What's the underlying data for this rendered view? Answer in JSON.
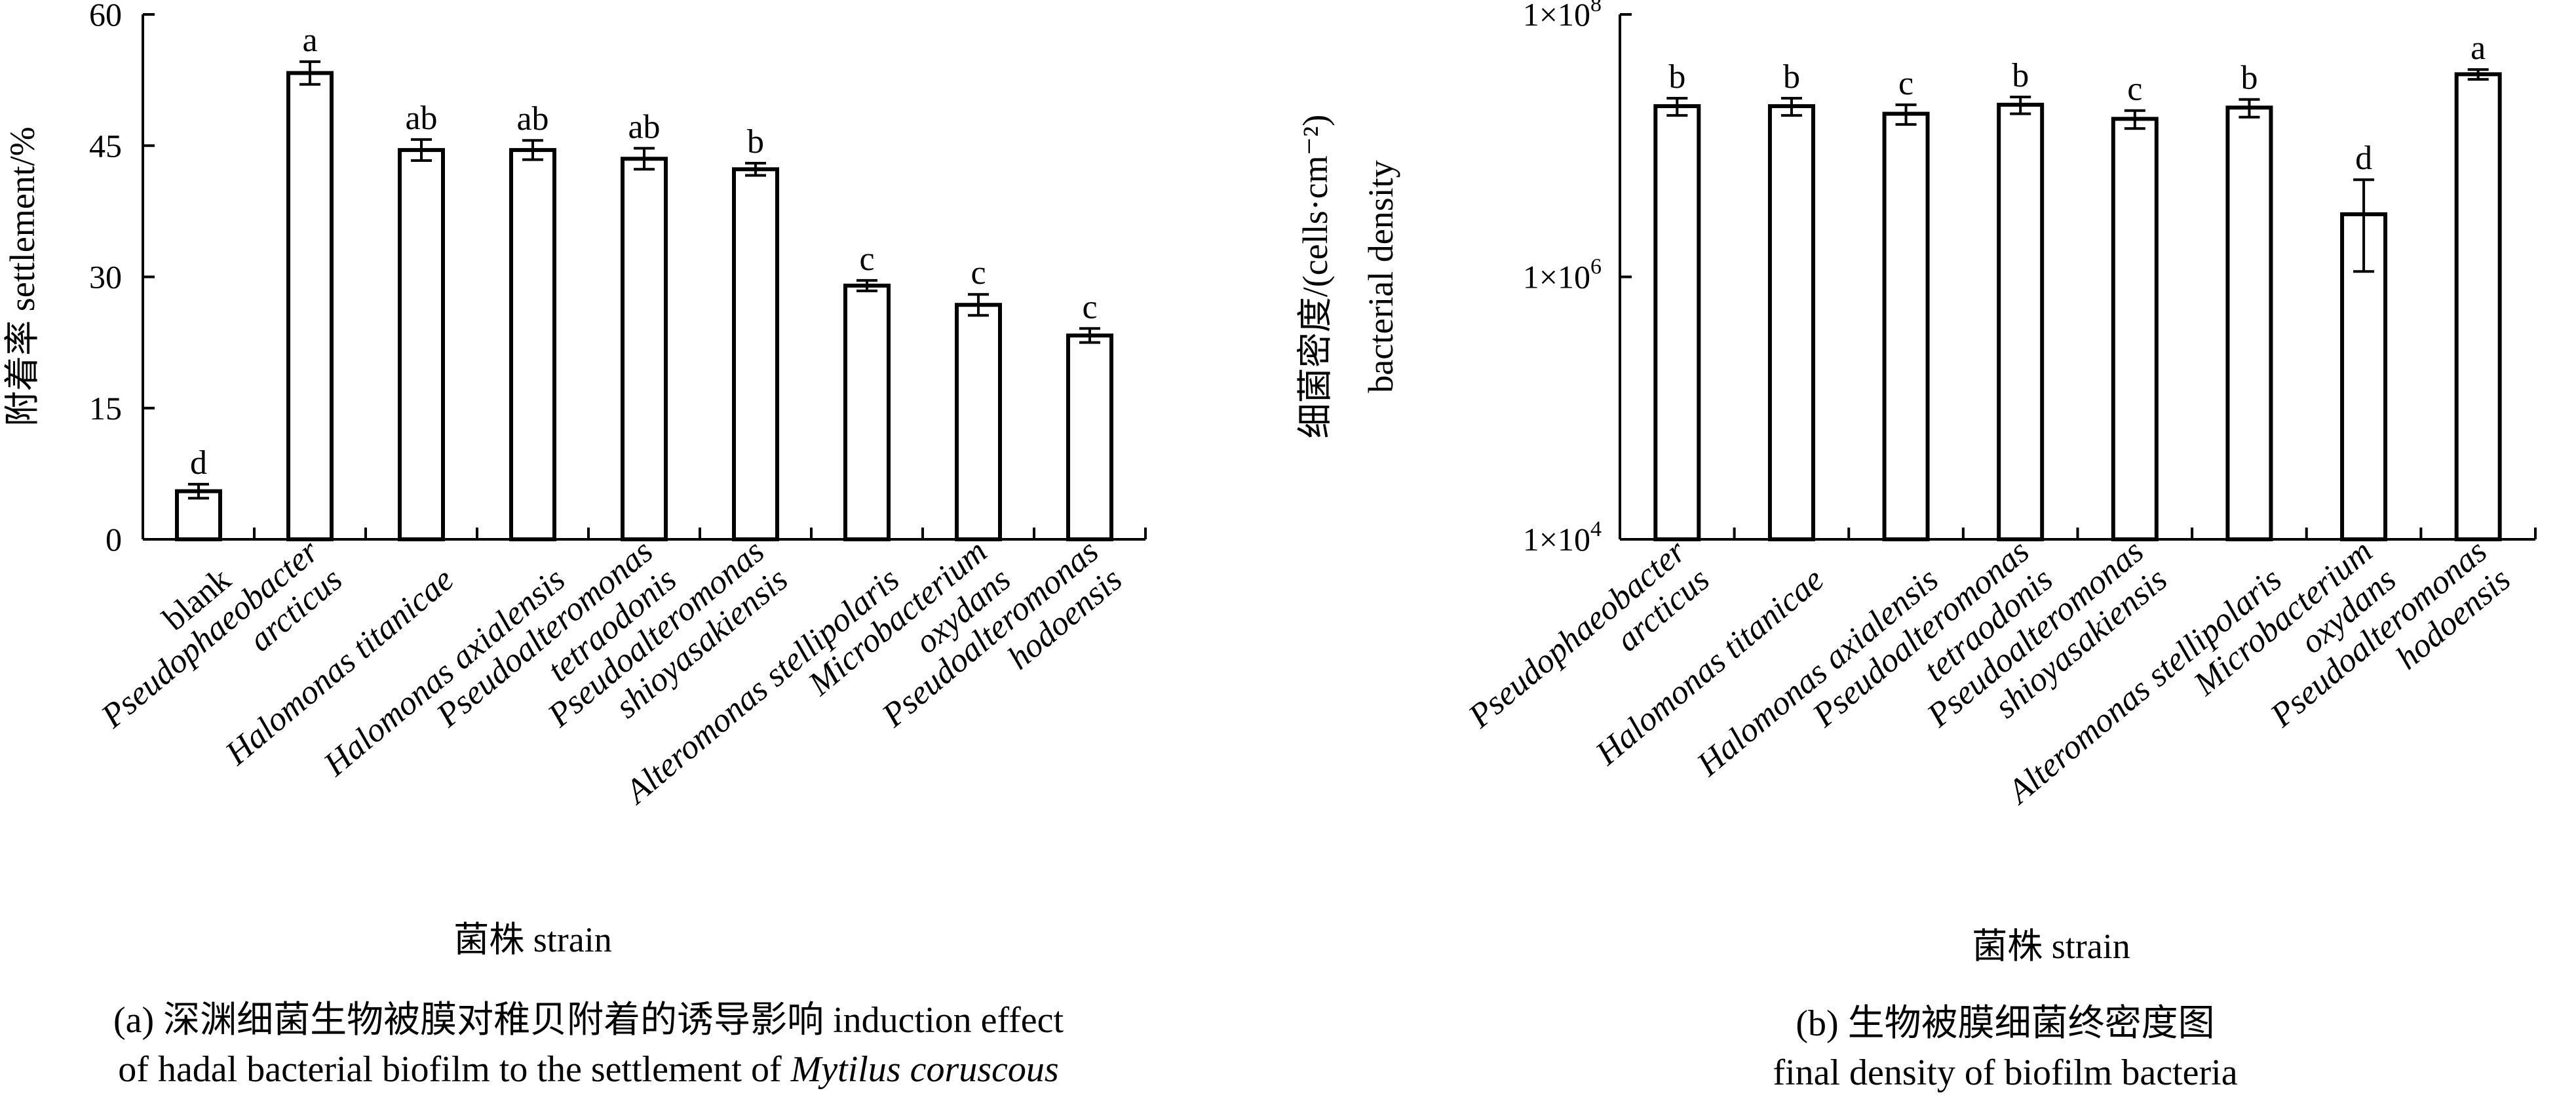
{
  "chart_data": [
    {
      "type": "bar",
      "panel": "a",
      "caption_line1": "(a) 深渊细菌生物被膜对稚贝附着的诱导影响 induction effect",
      "caption_line2_prefix": "of hadal bacterial biofilm to the settlement of ",
      "caption_line2_species": "Mytilus coruscous",
      "ylabel": "附着率 settlement/%",
      "xlabel": "菌株  strain",
      "ylim": [
        0,
        60
      ],
      "yticks": [
        "0",
        "15",
        "30",
        "45",
        "60"
      ],
      "categories": [
        {
          "lines": [
            "blank"
          ],
          "italic": false
        },
        {
          "lines": [
            "Pseudophaeobacter",
            "arcticus"
          ],
          "italic": true
        },
        {
          "lines": [
            "Halomonas titanicae"
          ],
          "italic": true
        },
        {
          "lines": [
            "Halomonas axialensis"
          ],
          "italic": true
        },
        {
          "lines": [
            "Pseudoalteromonas",
            "tetraodonis"
          ],
          "italic": true
        },
        {
          "lines": [
            "Pseudoalteromonas",
            "shioyasakiensis"
          ],
          "italic": true
        },
        {
          "lines": [
            "Alteromonas stellipolaris"
          ],
          "italic": true
        },
        {
          "lines": [
            "Microbacterium",
            "oxydans"
          ],
          "italic": true
        },
        {
          "lines": [
            "Pseudoalteromonas",
            "hodoensis"
          ],
          "italic": true
        }
      ],
      "values": [
        5.5,
        53.3,
        44.5,
        44.5,
        43.5,
        42.3,
        29.0,
        26.8,
        23.3
      ],
      "errors": [
        0.8,
        1.3,
        1.2,
        1.1,
        1.2,
        0.7,
        0.6,
        1.2,
        0.8
      ],
      "letters": [
        "d",
        "a",
        "ab",
        "ab",
        "ab",
        "b",
        "c",
        "c",
        "c"
      ]
    },
    {
      "type": "bar",
      "panel": "b",
      "caption_line1": "(b) 生物被膜细菌终密度图",
      "caption_line2": "final density of biofilm bacteria",
      "ylabel_line1": "细菌密度/(cells·cm⁻²)",
      "ylabel_line2": "bacterial density",
      "xlabel": "菌株  strain",
      "yscale": "log",
      "ylim": [
        10000,
        100000000
      ],
      "yticks": [
        {
          "value": 10000,
          "mantissa": "1×10",
          "exp": "4"
        },
        {
          "value": 1000000,
          "mantissa": "1×10",
          "exp": "6"
        },
        {
          "value": 100000000,
          "mantissa": "1×10",
          "exp": "8"
        }
      ],
      "categories": [
        {
          "lines": [
            "Pseudophaeobacter",
            "arcticus"
          ],
          "italic": true
        },
        {
          "lines": [
            "Halomonas titanicae"
          ],
          "italic": true
        },
        {
          "lines": [
            "Halomonas axialensis"
          ],
          "italic": true
        },
        {
          "lines": [
            "Pseudoalteromonas",
            "tetraodonis"
          ],
          "italic": true
        },
        {
          "lines": [
            "Pseudoalteromonas",
            "shioyasakiensis"
          ],
          "italic": true
        },
        {
          "lines": [
            "Alteromonas stellipolaris"
          ],
          "italic": true
        },
        {
          "lines": [
            "Microbacterium",
            "oxydans"
          ],
          "italic": true
        },
        {
          "lines": [
            "Pseudoalteromonas",
            "hodoensis"
          ],
          "italic": true
        }
      ],
      "values": [
        20000000,
        20000000,
        17500000,
        20500000,
        16000000,
        19500000,
        3000000,
        35000000
      ],
      "error_low": [
        17000000,
        17000000,
        14500000,
        17500000,
        13500000,
        16500000,
        1100000,
        32000000
      ],
      "error_high": [
        23000000,
        23000000,
        20500000,
        23500000,
        18500000,
        22500000,
        5500000,
        38000000
      ],
      "letters": [
        "b",
        "b",
        "c",
        "b",
        "c",
        "b",
        "d",
        "a"
      ]
    }
  ]
}
